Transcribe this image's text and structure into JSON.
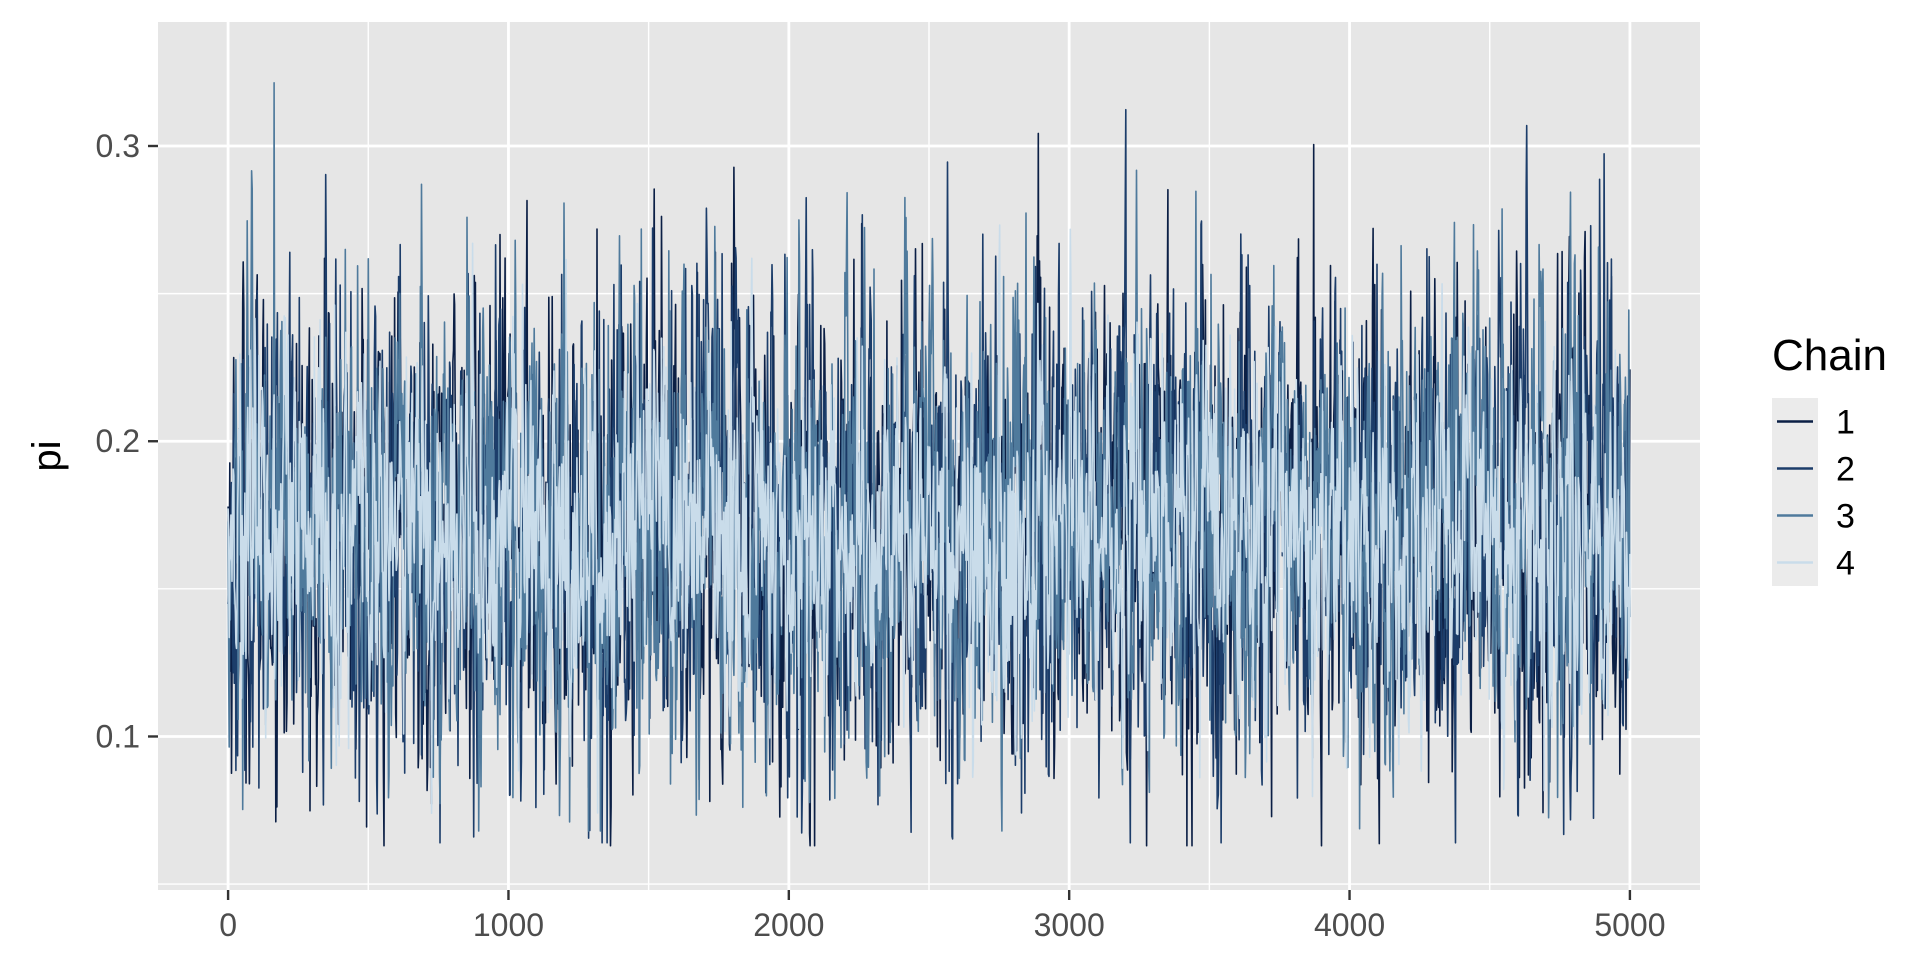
{
  "chart_data": {
    "type": "line",
    "ylabel": "pi",
    "xlim": [
      -250,
      5250
    ],
    "ylim": [
      0.048,
      0.342
    ],
    "x_ticks": [
      0,
      1000,
      2000,
      3000,
      4000,
      5000
    ],
    "x_tick_labels": [
      "0",
      "1000",
      "2000",
      "3000",
      "4000",
      "5000"
    ],
    "y_ticks": [
      0.1,
      0.2,
      0.3
    ],
    "y_tick_labels": [
      "0.1",
      "0.2",
      "0.3"
    ],
    "grid": true,
    "legend": {
      "title": "Chain",
      "position": "right",
      "entries": [
        "1",
        "2",
        "3",
        "4"
      ]
    },
    "iterations": [
      0,
      5000
    ],
    "series": [
      {
        "name": "1",
        "color": "#0b1f45",
        "center": 0.17,
        "spread": 0.04,
        "min": 0.063,
        "max": 0.329
      },
      {
        "name": "2",
        "color": "#1c3d6a",
        "center": 0.17,
        "spread": 0.04,
        "min": 0.064,
        "max": 0.32
      },
      {
        "name": "3",
        "color": "#4f7a9c",
        "center": 0.17,
        "spread": 0.038,
        "min": 0.068,
        "max": 0.327
      },
      {
        "name": "4",
        "color": "#c9dcea",
        "center": 0.167,
        "spread": 0.03,
        "min": 0.06,
        "max": 0.316
      }
    ]
  },
  "colors": {
    "panel_background": "#e6e6e6",
    "grid_line": "#ffffff",
    "legend_key_background": "#ebebeb"
  }
}
